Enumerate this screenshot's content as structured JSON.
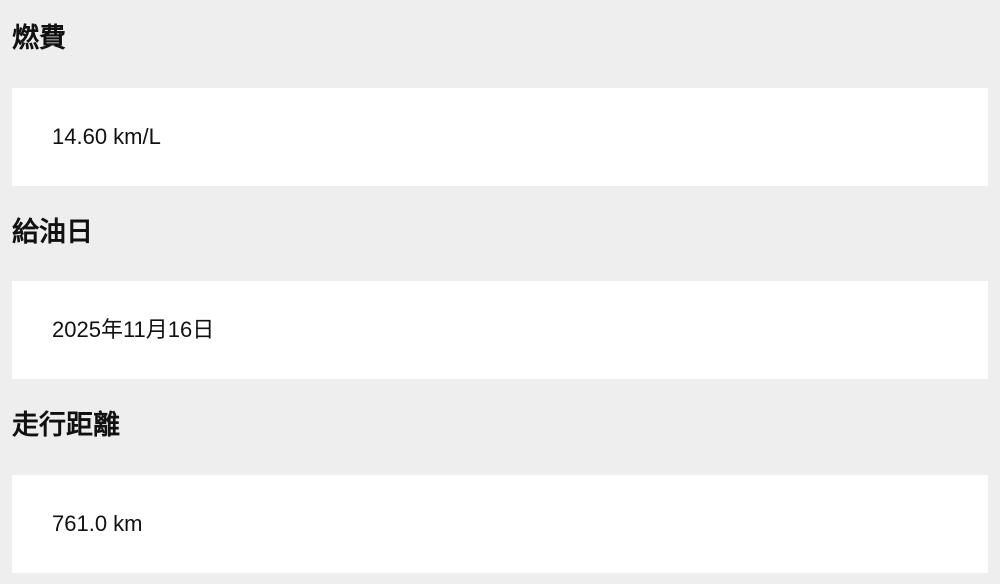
{
  "fields": [
    {
      "label": "燃費",
      "value": "14.60 km/L"
    },
    {
      "label": "給油日",
      "value": "2025年11月16日"
    },
    {
      "label": "走行距離",
      "value": "761.0 km"
    }
  ]
}
